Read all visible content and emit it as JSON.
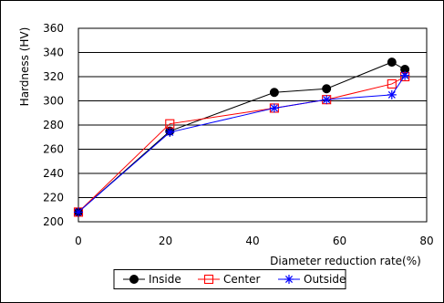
{
  "chart_data": {
    "type": "line",
    "title": "",
    "xlabel": "Diameter  reduction rate(%)",
    "ylabel": "Hardness (HV)",
    "xlim": [
      0,
      80
    ],
    "ylim": [
      200,
      360
    ],
    "x_ticks": [
      0,
      20,
      40,
      60,
      80
    ],
    "y_ticks": [
      200,
      220,
      240,
      260,
      280,
      300,
      320,
      340,
      360
    ],
    "grid": "horizontal",
    "legend_position": "bottom",
    "series": [
      {
        "name": "Inside",
        "color": "#000000",
        "marker": "filled-circle",
        "x": [
          0,
          21,
          45,
          57,
          72,
          75
        ],
        "y": [
          208,
          275,
          307,
          310,
          332,
          326
        ]
      },
      {
        "name": "Center",
        "color": "#ff0000",
        "marker": "open-square",
        "x": [
          0,
          21,
          45,
          57,
          72,
          75
        ],
        "y": [
          208,
          281,
          294,
          301,
          314,
          320
        ]
      },
      {
        "name": "Outside",
        "color": "#0000ff",
        "marker": "asterisk",
        "x": [
          0,
          21,
          45,
          57,
          72,
          75
        ],
        "y": [
          208,
          274,
          294,
          301,
          305,
          321
        ]
      }
    ]
  }
}
